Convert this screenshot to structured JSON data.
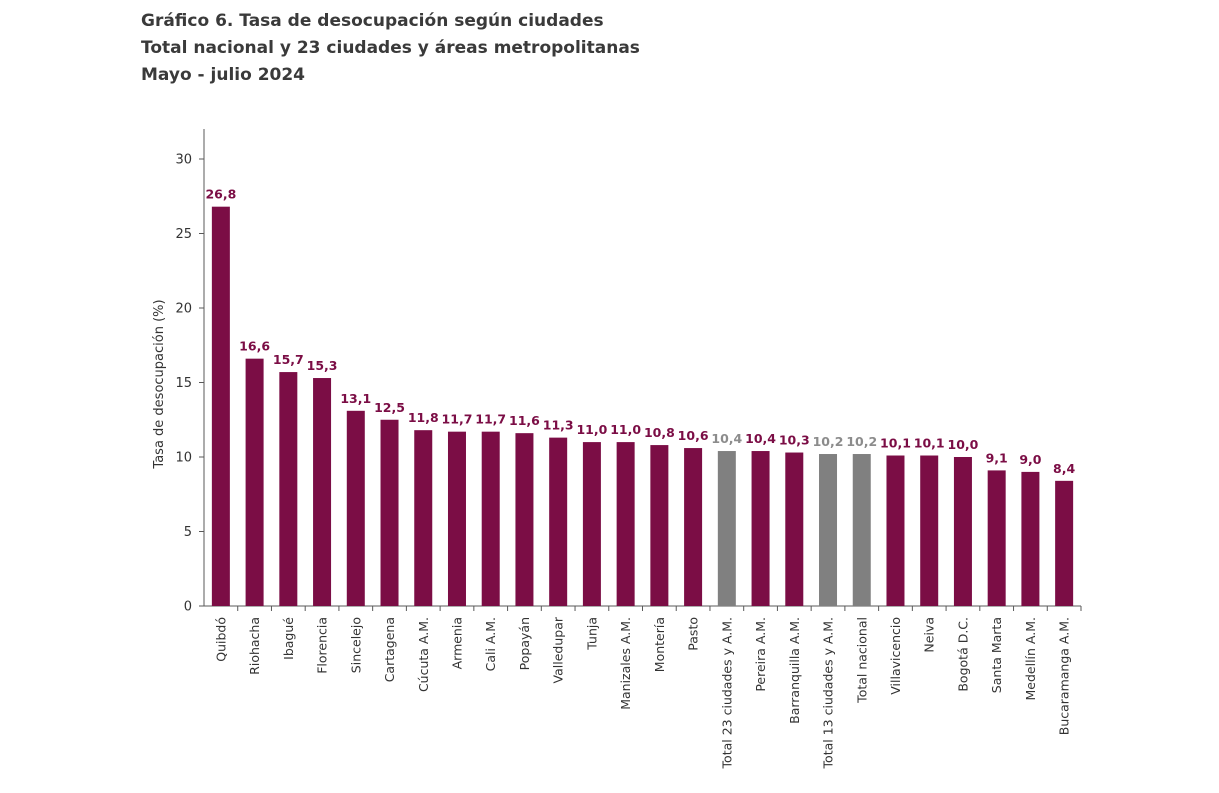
{
  "header": {
    "line1": "Gráfico 6. Tasa de desocupación según ciudades",
    "line2": "Total nacional y 23 ciudades y áreas metropolitanas",
    "line3": "Mayo - julio 2024"
  },
  "colors": {
    "city": "#7b0d45",
    "aggregate": "#808080",
    "axis": "#595959",
    "city_label": "#7b0d45",
    "aggregate_label": "#8c8c8c"
  },
  "chart_data": {
    "type": "bar",
    "ylabel": "Tasa de desocupación (%)",
    "xlabel": "",
    "ylim": [
      0,
      30
    ],
    "yticks": [
      0,
      5,
      10,
      15,
      20,
      25,
      30
    ],
    "grid": false,
    "legend": "none",
    "categories": [
      "Quibdó",
      "Riohacha",
      "Ibagué",
      "Florencia",
      "Sincelejo",
      "Cartagena",
      "Cúcuta A.M.",
      "Armenia",
      "Cali A.M.",
      "Popayán",
      "Valledupar",
      "Tunja",
      "Manizales A.M.",
      "Montería",
      "Pasto",
      "Total 23 ciudades y A.M.",
      "Pereira A.M.",
      "Barranquilla A.M.",
      "Total 13 ciudades y A.M.",
      "Total nacional",
      "Villavicencio",
      "Neiva",
      "Bogotá D.C.",
      "Santa Marta",
      "Medellín A.M.",
      "Bucaramanga A.M."
    ],
    "values": [
      26.8,
      16.6,
      15.7,
      15.3,
      13.1,
      12.5,
      11.8,
      11.7,
      11.7,
      11.6,
      11.3,
      11.0,
      11.0,
      10.8,
      10.6,
      10.4,
      10.4,
      10.3,
      10.2,
      10.2,
      10.1,
      10.1,
      10.0,
      9.1,
      9.0,
      8.4
    ],
    "value_labels": [
      "26,8",
      "16,6",
      "15,7",
      "15,3",
      "13,1",
      "12,5",
      "11,8",
      "11,7",
      "11,7",
      "11,6",
      "11,3",
      "11,0",
      "11,0",
      "10,8",
      "10,6",
      "10,4",
      "10,4",
      "10,3",
      "10,2",
      "10,2",
      "10,1",
      "10,1",
      "10,0",
      "9,1",
      "9,0",
      "8,4"
    ],
    "aggregate_categories": [
      "Total 23 ciudades y A.M.",
      "Total 13 ciudades y A.M.",
      "Total nacional"
    ]
  }
}
